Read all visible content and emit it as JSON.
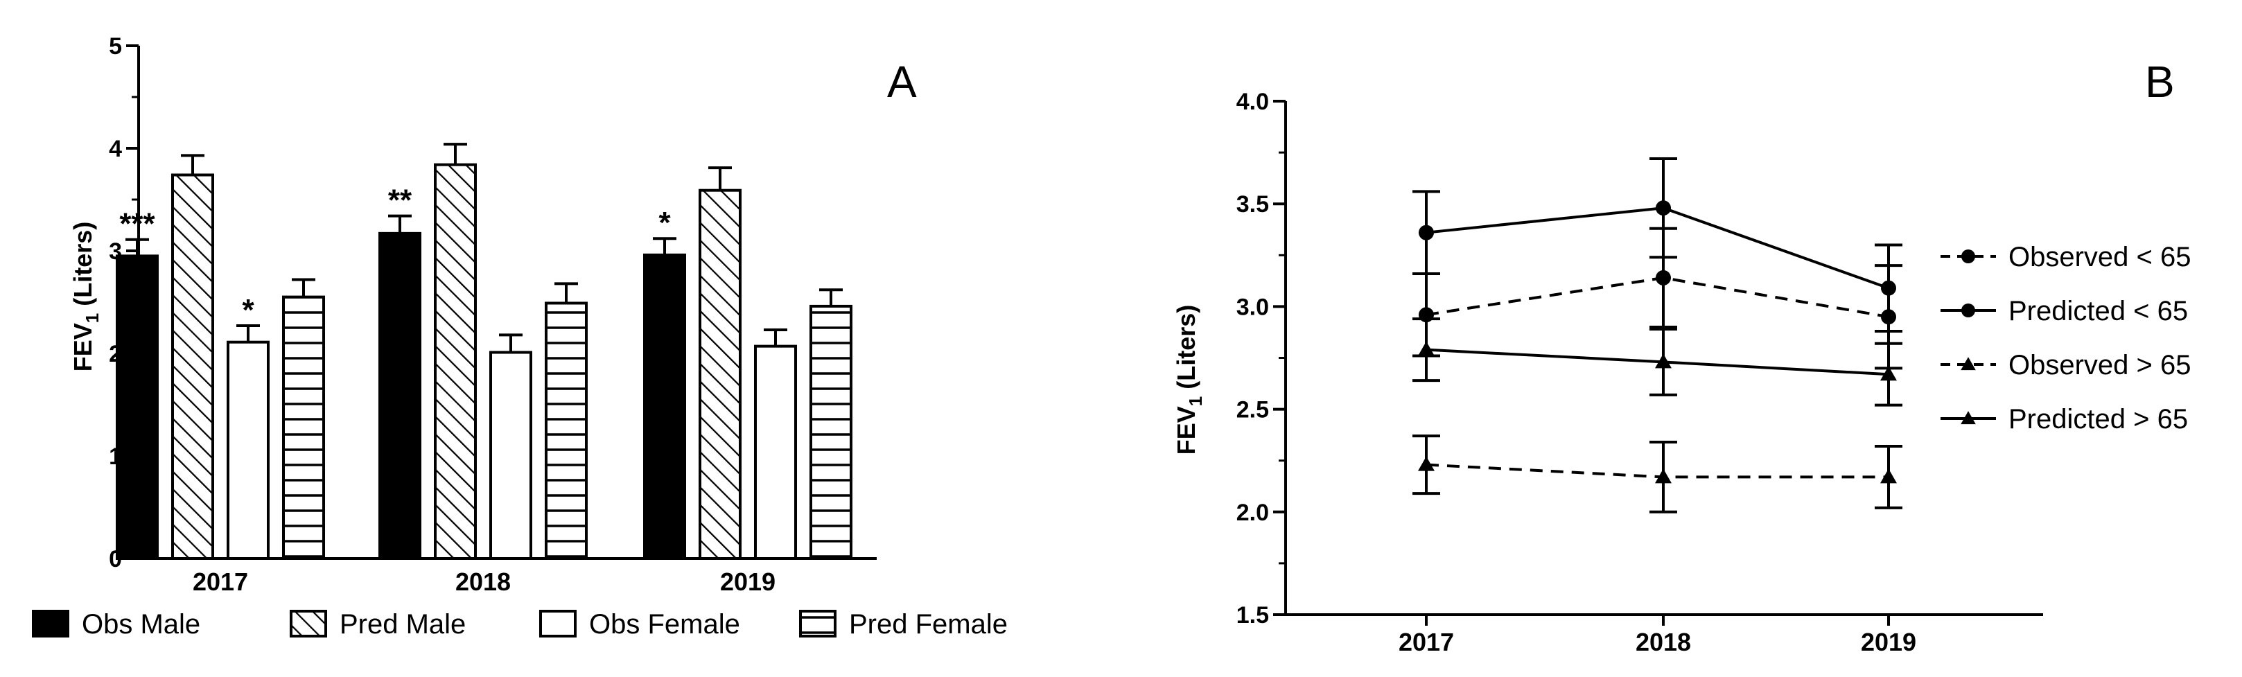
{
  "colors": {
    "ink": "#000000",
    "paper": "#ffffff"
  },
  "chart_data": [
    {
      "type": "bar",
      "panel_label": "A",
      "title": "",
      "xlabel": "",
      "ylabel": {
        "main": "FEV",
        "sub": "1",
        "suffix": " (Liters)"
      },
      "ylim": [
        0,
        5
      ],
      "yticks": [
        "0",
        "1",
        "2",
        "3",
        "4",
        "5"
      ],
      "categories": [
        "2017",
        "2018",
        "2019"
      ],
      "series": [
        {
          "name": "Obs Male",
          "fill": "solid",
          "values": [
            2.95,
            3.17,
            2.96
          ],
          "errors": [
            0.16,
            0.17,
            0.16
          ]
        },
        {
          "name": "Pred Male",
          "fill": "diagonal-hatch",
          "values": [
            3.74,
            3.84,
            3.59
          ],
          "errors": [
            0.19,
            0.2,
            0.22
          ]
        },
        {
          "name": "Obs Female",
          "fill": "open",
          "values": [
            2.11,
            2.01,
            2.07
          ],
          "errors": [
            0.16,
            0.17,
            0.16
          ]
        },
        {
          "name": "Pred Female",
          "fill": "horizontal-hatch",
          "values": [
            2.55,
            2.49,
            2.46
          ],
          "errors": [
            0.17,
            0.19,
            0.16
          ]
        }
      ],
      "annotations": [
        {
          "text": "***",
          "series": 0,
          "category": 0
        },
        {
          "text": "*",
          "series": 2,
          "category": 0
        },
        {
          "text": "**",
          "series": 0,
          "category": 1
        },
        {
          "text": "*",
          "series": 0,
          "category": 2
        }
      ],
      "legend_position": "bottom"
    },
    {
      "type": "line",
      "panel_label": "B",
      "title": "",
      "xlabel": "",
      "ylabel": {
        "main": "FEV",
        "sub": "1",
        "suffix": " (Liters)"
      },
      "ylim": [
        1.5,
        4.0
      ],
      "yticks": [
        "1.5",
        "2.0",
        "2.5",
        "3.0",
        "3.5",
        "4.0"
      ],
      "x": [
        "2017",
        "2018",
        "2019"
      ],
      "series": [
        {
          "name": "Observed < 65",
          "marker": "circle",
          "dash": "dashed",
          "values": [
            2.96,
            3.14,
            2.95
          ],
          "errors": [
            0.2,
            0.24,
            0.25
          ]
        },
        {
          "name": "Predicted < 65",
          "marker": "circle",
          "dash": "solid",
          "values": [
            3.36,
            3.48,
            3.09
          ],
          "errors": [
            0.2,
            0.24,
            0.21
          ]
        },
        {
          "name": "Observed > 65",
          "marker": "triangle",
          "dash": "dashed",
          "values": [
            2.23,
            2.17,
            2.17
          ],
          "errors": [
            0.14,
            0.17,
            0.15
          ]
        },
        {
          "name": "Predicted > 65",
          "marker": "triangle",
          "dash": "solid",
          "values": [
            2.79,
            2.73,
            2.67
          ],
          "errors": [
            0.15,
            0.16,
            0.15
          ]
        }
      ],
      "legend_position": "right"
    }
  ]
}
